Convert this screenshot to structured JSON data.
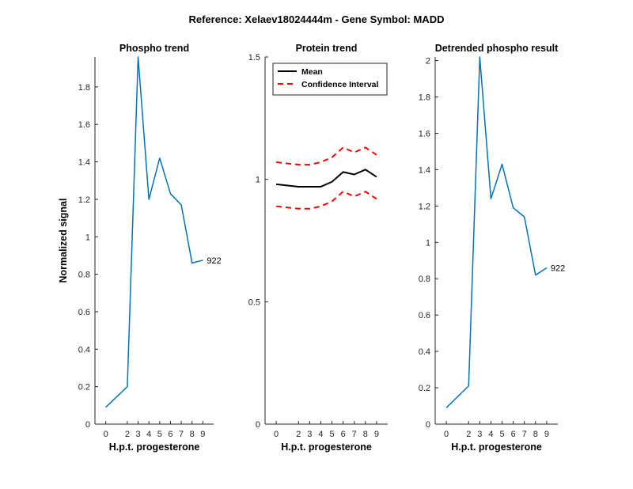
{
  "figure": {
    "suptitle": "Reference:  Xelaev18024444m - Gene Symbol:  MADD"
  },
  "chart_data": [
    {
      "type": "line",
      "title": "Phospho trend",
      "xlabel": "H.p.t. progesterone",
      "ylabel": "Normalized signal",
      "xlim": [
        -1,
        10
      ],
      "ylim": [
        0,
        1.96
      ],
      "xticks": [
        0,
        2,
        3,
        4,
        5,
        6,
        7,
        8,
        9
      ],
      "xtick_labels": [
        "0",
        "2",
        "3",
        "4",
        "5",
        "6",
        "7",
        "8",
        "9"
      ],
      "yticks": [
        0,
        0.2,
        0.4,
        0.6,
        0.8,
        1,
        1.2,
        1.4,
        1.6,
        1.8
      ],
      "ytick_labels": [
        "0",
        "0.2",
        "0.4",
        "0.6",
        "0.8",
        "1",
        "1.2",
        "1.4",
        "1.6",
        "1.8"
      ],
      "grid": false,
      "series": [
        {
          "color": "#0072BD",
          "x": [
            0,
            2,
            3,
            4,
            5,
            6,
            7,
            8,
            9
          ],
          "y": [
            0.09,
            0.2,
            1.96,
            1.2,
            1.42,
            1.23,
            1.17,
            0.86,
            0.875
          ],
          "end_label": "922"
        }
      ]
    },
    {
      "type": "line",
      "title": "Protein trend",
      "xlabel": "H.p.t. progesterone",
      "ylabel": "",
      "xlim": [
        -1,
        10
      ],
      "ylim": [
        0,
        1.5
      ],
      "xticks": [
        0,
        2,
        3,
        4,
        5,
        6,
        7,
        8,
        9
      ],
      "xtick_labels": [
        "0",
        "2",
        "3",
        "4",
        "5",
        "6",
        "7",
        "8",
        "9"
      ],
      "yticks": [
        0,
        0.5,
        1,
        1.5
      ],
      "ytick_labels": [
        "0",
        "0.5",
        "1",
        "1.5"
      ],
      "grid": false,
      "legend": {
        "placement": "top-left",
        "boxed": true
      },
      "series": [
        {
          "name": "Mean",
          "color": "#000000",
          "dash": "solid",
          "x": [
            0,
            2,
            3,
            4,
            5,
            6,
            7,
            8,
            9
          ],
          "y": [
            0.98,
            0.97,
            0.97,
            0.97,
            0.99,
            1.03,
            1.02,
            1.04,
            1.01
          ]
        },
        {
          "name": "Confidence Interval",
          "color": "#FF0000",
          "dash": "dashed",
          "x": [
            0,
            2,
            3,
            4,
            5,
            6,
            7,
            8,
            9
          ],
          "y": [
            1.07,
            1.06,
            1.06,
            1.07,
            1.09,
            1.13,
            1.11,
            1.13,
            1.1
          ]
        },
        {
          "name": "",
          "color": "#FF0000",
          "dash": "dashed",
          "x": [
            0,
            2,
            3,
            4,
            5,
            6,
            7,
            8,
            9
          ],
          "y": [
            0.89,
            0.88,
            0.88,
            0.89,
            0.91,
            0.95,
            0.93,
            0.95,
            0.92
          ]
        }
      ]
    },
    {
      "type": "line",
      "title": "Detrended phospho result",
      "xlabel": "H.p.t. progesterone",
      "ylabel": "",
      "xlim": [
        -1,
        10
      ],
      "ylim": [
        0,
        2.02
      ],
      "xticks": [
        0,
        2,
        3,
        4,
        5,
        6,
        7,
        8,
        9
      ],
      "xtick_labels": [
        "0",
        "2",
        "3",
        "4",
        "5",
        "6",
        "7",
        "8",
        "9"
      ],
      "yticks": [
        0,
        0.2,
        0.4,
        0.6,
        0.8,
        1,
        1.2,
        1.4,
        1.6,
        1.8,
        2
      ],
      "ytick_labels": [
        "0",
        "0.2",
        "0.4",
        "0.6",
        "0.8",
        "1",
        "1.2",
        "1.4",
        "1.6",
        "1.8",
        "2"
      ],
      "grid": false,
      "series": [
        {
          "color": "#0072BD",
          "x": [
            0,
            2,
            3,
            4,
            5,
            6,
            7,
            8,
            9
          ],
          "y": [
            0.09,
            0.21,
            2.02,
            1.24,
            1.43,
            1.19,
            1.14,
            0.82,
            0.86
          ],
          "end_label": "922"
        }
      ]
    }
  ]
}
